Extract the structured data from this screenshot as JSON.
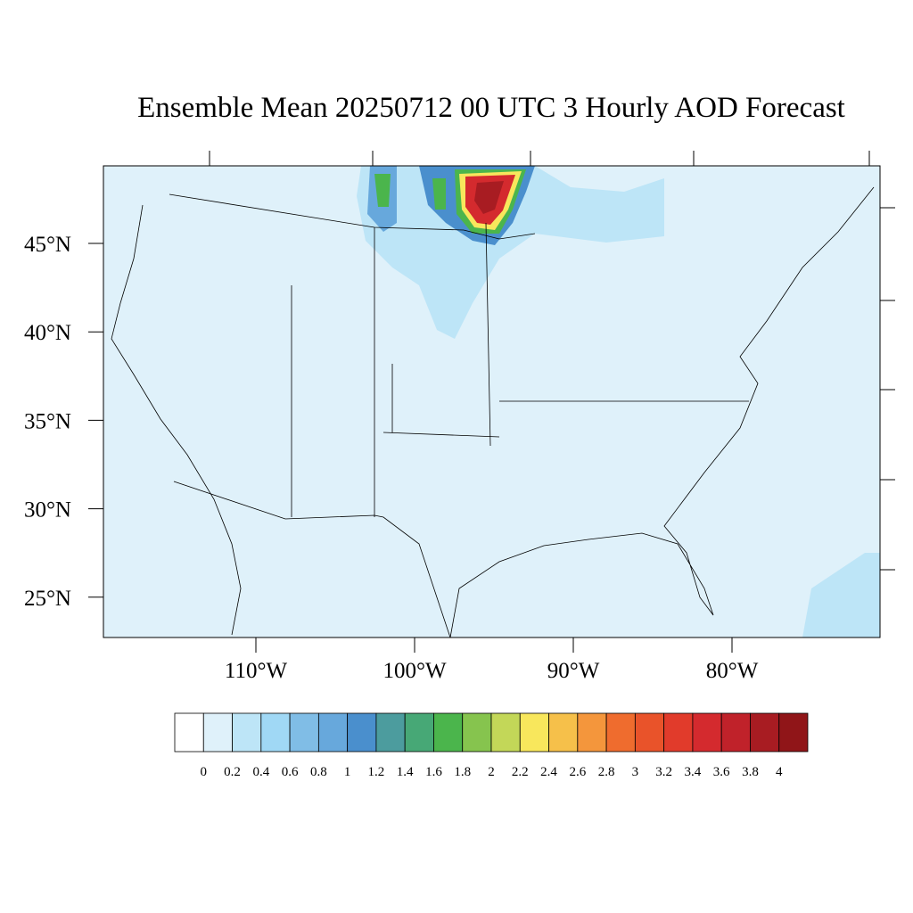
{
  "title": "Ensemble Mean 20250712 00 UTC 3 Hourly AOD Forecast",
  "lat_labels": [
    "45°N",
    "40°N",
    "35°N",
    "30°N",
    "25°N"
  ],
  "lon_labels": [
    "110°W",
    "100°W",
    "90°W",
    "80°W"
  ],
  "colorbar": {
    "labels": [
      0,
      0.2,
      0.4,
      0.6,
      0.8,
      1,
      1.2,
      1.4,
      1.6,
      1.8,
      2,
      2.2,
      2.4,
      2.6,
      2.8,
      3,
      3.2,
      3.4,
      3.6,
      3.8,
      4
    ],
    "colors": [
      "#ffffff",
      "#dff1fa",
      "#bde5f7",
      "#a0d8f5",
      "#80bde6",
      "#67a8dc",
      "#4a8fcd",
      "#4c9c9e",
      "#47a876",
      "#4bb54c",
      "#86c44e",
      "#c3d758",
      "#f8e75c",
      "#f6c04a",
      "#f4963c",
      "#ef6c2e",
      "#e9532a",
      "#e13b2b",
      "#d42a2e",
      "#c0222a",
      "#a81c22",
      "#901518"
    ]
  }
}
